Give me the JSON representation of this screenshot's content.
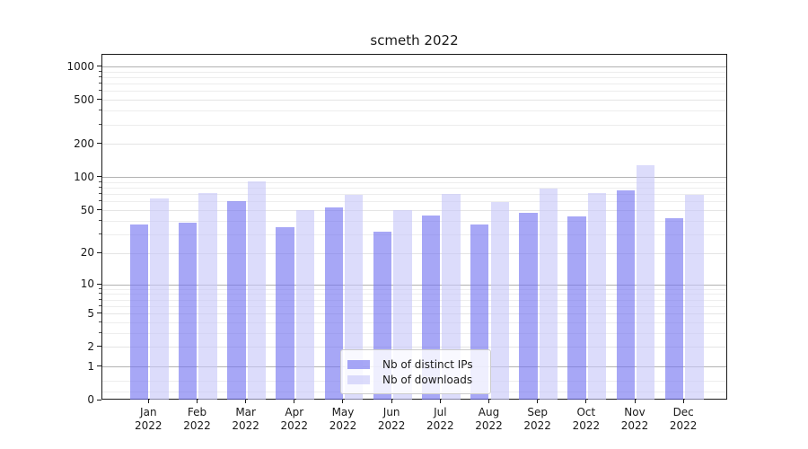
{
  "title": "scmeth 2022",
  "chart_data": {
    "type": "bar",
    "title": "scmeth 2022",
    "categories": [
      "Jan 2022",
      "Feb 2022",
      "Mar 2022",
      "Apr 2022",
      "May 2022",
      "Jun 2022",
      "Jul 2022",
      "Aug 2022",
      "Sep 2022",
      "Oct 2022",
      "Nov 2022",
      "Dec 2022"
    ],
    "series": [
      {
        "name": "Nb of distinct IPs",
        "fill": "rgba(113,113,241,0.62)",
        "hex_on_white": "#a8a8f6",
        "values": [
          37,
          39,
          61,
          35,
          54,
          32,
          45,
          37,
          48,
          44,
          77,
          43
        ]
      },
      {
        "name": "Nb of downloads",
        "fill": "rgba(199,199,249,0.62)",
        "hex_on_white": "#dcdcfb",
        "values": [
          65,
          72,
          93,
          51,
          70,
          51,
          71,
          60,
          79,
          72,
          130,
          70
        ]
      }
    ],
    "xlabel": "",
    "ylabel": "",
    "yscale": "log10(1+x)",
    "ylim": [
      0,
      1275
    ],
    "yticks": [
      0,
      1,
      2,
      5,
      10,
      20,
      50,
      100,
      200,
      500,
      1000
    ],
    "ytick_major": [
      1,
      10,
      100,
      1000
    ],
    "ytick_minor": [
      0.2,
      0.5,
      3,
      4,
      6,
      7,
      8,
      9,
      30,
      40,
      60,
      70,
      80,
      90,
      300,
      400,
      600,
      700,
      800,
      900
    ],
    "grid": true,
    "legend_position": "lower center"
  },
  "legend": {
    "items": [
      {
        "label": "Nb of distinct IPs",
        "color": "#a8a8f6"
      },
      {
        "label": "Nb of downloads",
        "color": "#dcdcfb"
      }
    ]
  }
}
